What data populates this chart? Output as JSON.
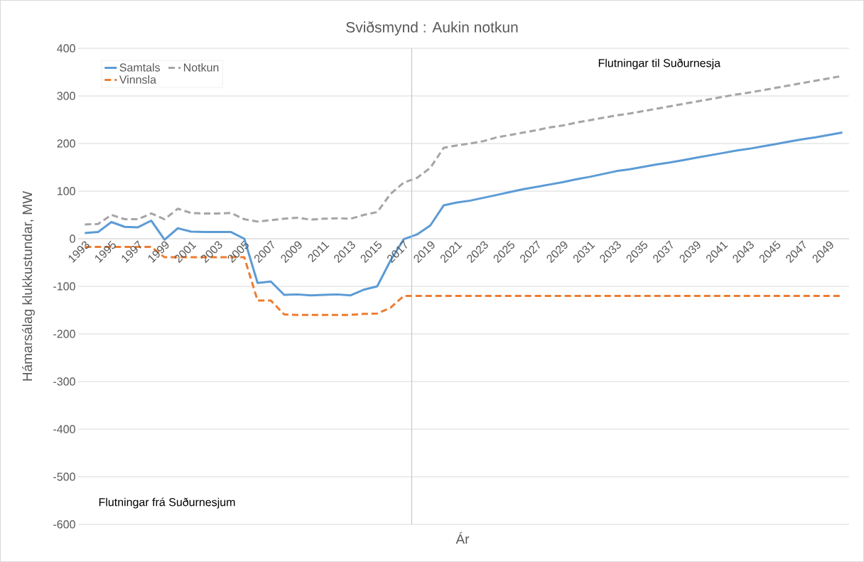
{
  "chart_data": {
    "type": "line",
    "title": "Sviðsmynd : Aukin notkun",
    "xlabel": "Ár",
    "ylabel": "Hámarsálag klukkustundar, MW",
    "categories": [
      "1993",
      null,
      "1995",
      null,
      "1997",
      null,
      "1999",
      null,
      "2001",
      null,
      "2003",
      null,
      "2005",
      null,
      "2007",
      null,
      "2009",
      null,
      "2011",
      null,
      "2013",
      null,
      "2015",
      null,
      "2017",
      null,
      "2019",
      null,
      "2021",
      null,
      "2023",
      null,
      "2025",
      null,
      "2027",
      null,
      "2029",
      null,
      "2031",
      null,
      "2033",
      null,
      "2035",
      null,
      "2037",
      null,
      "2039",
      null,
      "2041",
      null,
      "2043",
      null,
      "2045",
      null,
      "2047",
      null,
      "2049",
      null
    ],
    "series": [
      {
        "name": "Samtals",
        "color": "#5b9bd5",
        "line_style": "solid",
        "values": [
          12,
          14,
          35,
          25,
          24,
          38,
          -2,
          22,
          15,
          14,
          14,
          14,
          0,
          -93,
          -90,
          -118,
          -117,
          -119,
          -118,
          -117,
          -119,
          -107,
          -100,
          -46,
          -1,
          9,
          28,
          70,
          76,
          80,
          86,
          92,
          98,
          104,
          109,
          114,
          119,
          125,
          130,
          136,
          142,
          146,
          151,
          156,
          160,
          165,
          170,
          175,
          180,
          185,
          189,
          194,
          199,
          204,
          209,
          213,
          218,
          223
        ]
      },
      {
        "name": "Notkun",
        "color": "#a5a5a5",
        "line_style": "dashed",
        "values": [
          30,
          31,
          50,
          41,
          41,
          53,
          41,
          63,
          54,
          53,
          53,
          54,
          41,
          36,
          39,
          42,
          44,
          40,
          42,
          43,
          42,
          50,
          56,
          94,
          118,
          128,
          149,
          191,
          196,
          200,
          205,
          213,
          218,
          223,
          228,
          234,
          238,
          244,
          249,
          254,
          259,
          263,
          268,
          273,
          278,
          283,
          288,
          293,
          298,
          303,
          307,
          312,
          317,
          322,
          327,
          332,
          337,
          342
        ]
      },
      {
        "name": "Vinnsla",
        "color": "#ed7d31",
        "line_style": "dashed",
        "values": [
          -17,
          -17,
          -17,
          -17,
          -17,
          -17,
          -39,
          -39,
          -39,
          -39,
          -39,
          -39,
          -39,
          -130,
          -130,
          -159,
          -160,
          -160,
          -160,
          -160,
          -160,
          -158,
          -157,
          -145,
          -120,
          -120,
          -120,
          -120,
          -120,
          -120,
          -120,
          -120,
          -120,
          -120,
          -120,
          -120,
          -120,
          -120,
          -120,
          -120,
          -120,
          -120,
          -120,
          -120,
          -120,
          -120,
          -120,
          -120,
          -120,
          -120,
          -120,
          -120,
          -120,
          -120,
          -120,
          -120,
          -120,
          -120
        ]
      }
    ],
    "ylim": [
      -600,
      400
    ],
    "yticks": [
      -600,
      -500,
      -400,
      -300,
      -200,
      -100,
      0,
      100,
      200,
      300,
      400
    ],
    "grid": "y",
    "legend": "top left",
    "marker": "none",
    "annotations": [
      "Flutningar til Suðurnesja",
      "Flutningar frá Suðurnesjum"
    ]
  }
}
